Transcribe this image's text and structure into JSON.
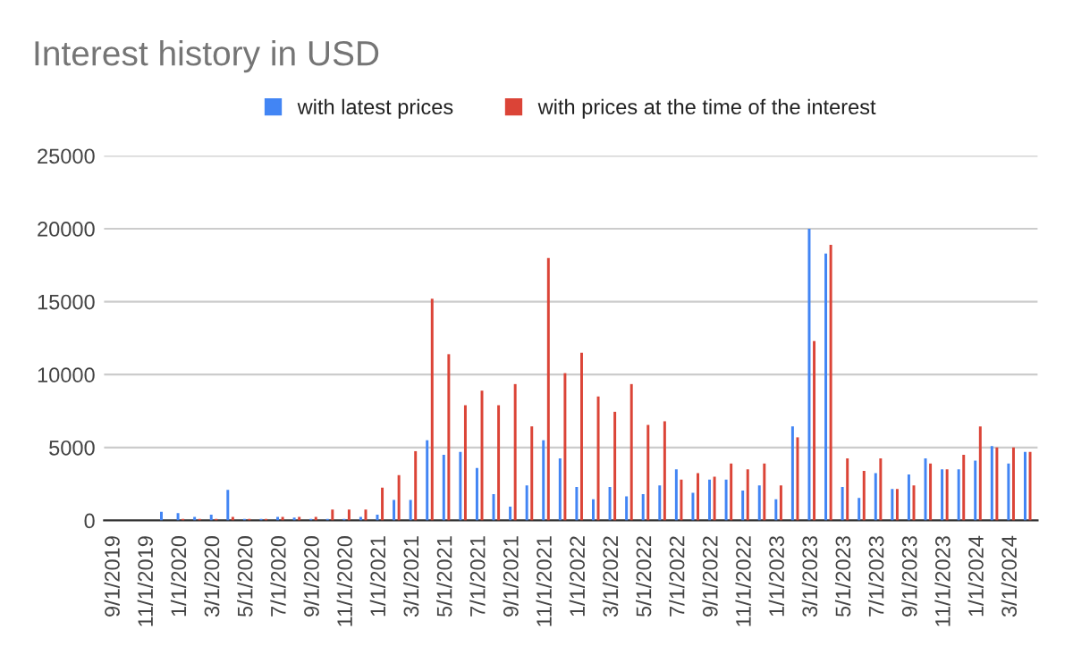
{
  "chart_data": {
    "type": "bar",
    "title": "Interest history in USD",
    "categories": [
      "9/1/2019",
      null,
      "11/1/2019",
      null,
      "1/1/2020",
      null,
      "3/1/2020",
      null,
      "5/1/2020",
      null,
      "7/1/2020",
      null,
      "9/1/2020",
      null,
      "11/1/2020",
      null,
      "1/1/2021",
      null,
      "3/1/2021",
      null,
      "5/1/2021",
      null,
      "7/1/2021",
      null,
      "9/1/2021",
      null,
      "11/1/2021",
      null,
      "1/1/2022",
      null,
      "3/1/2022",
      null,
      "5/1/2022",
      null,
      "7/1/2022",
      null,
      "9/1/2022",
      null,
      "11/1/2022",
      null,
      "1/1/2023",
      null,
      "3/1/2023",
      null,
      "5/1/2023",
      null,
      "7/1/2023",
      null,
      "9/1/2023",
      null,
      "11/1/2023",
      null,
      "1/1/2024",
      null,
      "3/1/2024",
      null
    ],
    "series": [
      {
        "name": "with latest prices",
        "color": "#4285f4",
        "values": [
          0,
          0,
          0,
          600,
          500,
          250,
          400,
          2100,
          100,
          100,
          250,
          200,
          100,
          100,
          100,
          250,
          400,
          1400,
          1400,
          5500,
          4500,
          4700,
          3600,
          1800,
          950,
          2400,
          5500,
          4250,
          2300,
          1450,
          2300,
          1650,
          1800,
          2400,
          3500,
          1900,
          2800,
          2800,
          2050,
          2400,
          1450,
          6450,
          20000,
          18300,
          2300,
          1550,
          3250,
          2150,
          3150,
          4250,
          3500,
          3500,
          4100,
          5100,
          3900,
          4700
        ]
      },
      {
        "name": "with prices at the time of the interest",
        "color": "#db4437",
        "values": [
          0,
          0,
          0,
          0,
          100,
          100,
          100,
          250,
          100,
          100,
          250,
          250,
          250,
          750,
          750,
          750,
          2250,
          3100,
          4750,
          15200,
          11400,
          7900,
          8900,
          7900,
          9350,
          6450,
          18000,
          10100,
          11500,
          8500,
          7450,
          9350,
          6550,
          6800,
          2800,
          3250,
          3000,
          3900,
          3500,
          3900,
          2400,
          5700,
          12300,
          18900,
          4250,
          3400,
          4250,
          2150,
          2400,
          3900,
          3500,
          4500,
          6450,
          5000,
          5000,
          4700
        ]
      }
    ],
    "ylim": [
      0,
      25000
    ],
    "yticks": [
      0,
      5000,
      10000,
      15000,
      20000,
      25000
    ],
    "grid": "y",
    "legend": "top"
  }
}
